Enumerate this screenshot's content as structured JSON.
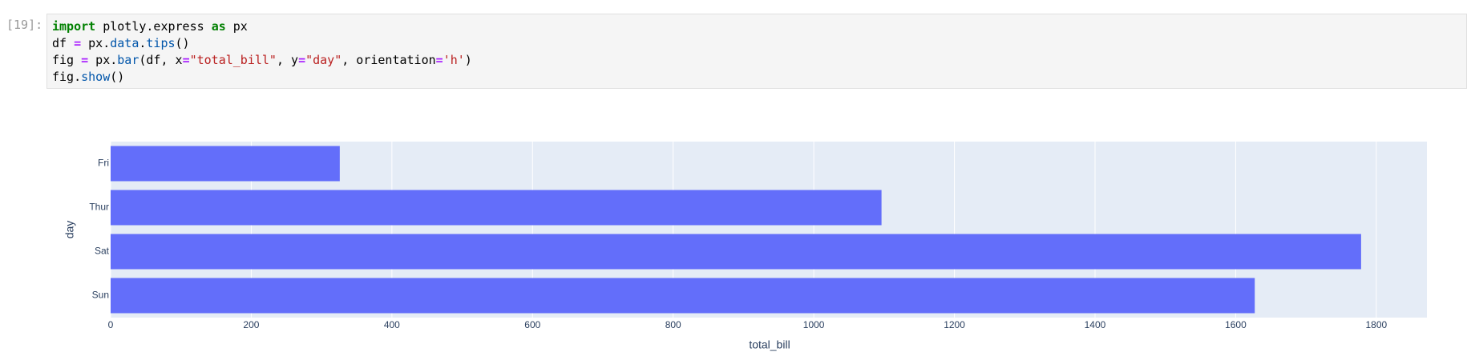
{
  "cell": {
    "prompt": "[19]:",
    "lines": [
      {
        "tokens": [
          {
            "text": "import",
            "kind": "keyword"
          },
          {
            "text": " plotly.express ",
            "kind": "plain"
          },
          {
            "text": "as",
            "kind": "keyword"
          },
          {
            "text": " px",
            "kind": "plain"
          }
        ]
      },
      {
        "tokens": [
          {
            "text": "df ",
            "kind": "plain"
          },
          {
            "text": "=",
            "kind": "operator"
          },
          {
            "text": " px.",
            "kind": "plain"
          },
          {
            "text": "data",
            "kind": "attribute"
          },
          {
            "text": ".",
            "kind": "plain"
          },
          {
            "text": "tips",
            "kind": "attribute"
          },
          {
            "text": "()",
            "kind": "plain"
          }
        ]
      },
      {
        "tokens": [
          {
            "text": "fig ",
            "kind": "plain"
          },
          {
            "text": "=",
            "kind": "operator"
          },
          {
            "text": " px.",
            "kind": "plain"
          },
          {
            "text": "bar",
            "kind": "attribute"
          },
          {
            "text": "(df, x",
            "kind": "plain"
          },
          {
            "text": "=",
            "kind": "operator"
          },
          {
            "text": "\"total_bill\"",
            "kind": "string"
          },
          {
            "text": ", y",
            "kind": "plain"
          },
          {
            "text": "=",
            "kind": "operator"
          },
          {
            "text": "\"day\"",
            "kind": "string"
          },
          {
            "text": ", orientation",
            "kind": "plain"
          },
          {
            "text": "=",
            "kind": "operator"
          },
          {
            "text": "'h'",
            "kind": "string"
          },
          {
            "text": ")",
            "kind": "plain"
          }
        ]
      },
      {
        "tokens": [
          {
            "text": "fig.",
            "kind": "plain"
          },
          {
            "text": "show",
            "kind": "attribute"
          },
          {
            "text": "()",
            "kind": "plain"
          }
        ]
      }
    ]
  },
  "chart_data": {
    "type": "barh",
    "x_label": "total_bill",
    "y_label": "day",
    "categories": [
      "Fri",
      "Thur",
      "Sat",
      "Sun"
    ],
    "values": [
      325.88,
      1096.33,
      1778.4,
      1627.16
    ],
    "color": "#636efa",
    "xlim": [
      0,
      1872
    ],
    "xticks": [
      0,
      200,
      400,
      600,
      800,
      1000,
      1200,
      1400,
      1600,
      1800
    ],
    "grid": true
  }
}
